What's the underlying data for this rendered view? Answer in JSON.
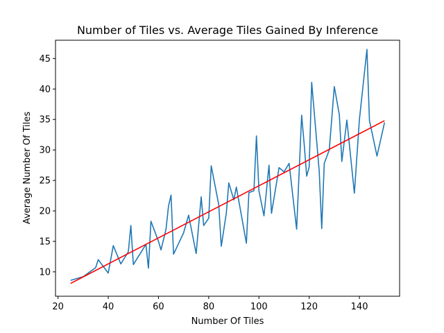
{
  "chart_data": {
    "type": "line",
    "title": "Number of Tiles vs. Average Tiles Gained By Inference",
    "xlabel": "Number Of Tiles",
    "ylabel": "Average Number Of Tiles",
    "xlim": [
      19,
      156
    ],
    "ylim": [
      6,
      48
    ],
    "xticks": [
      20,
      40,
      60,
      80,
      100,
      120,
      140
    ],
    "yticks": [
      10,
      15,
      20,
      25,
      30,
      35,
      40,
      45
    ],
    "grid": false,
    "series": [
      {
        "color": "#1f77b4",
        "x": [
          25,
          30,
          35,
          36,
          40,
          42,
          45,
          48,
          49,
          50,
          55,
          56,
          57,
          60,
          61,
          63,
          64,
          65,
          66,
          70,
          72,
          75,
          77,
          78,
          80,
          81,
          84,
          85,
          87,
          88,
          90,
          91,
          95,
          96,
          98,
          99,
          100,
          102,
          104,
          105,
          108,
          110,
          112,
          115,
          117,
          118,
          119,
          120,
          121,
          124,
          125,
          126,
          128,
          130,
          132,
          133,
          135,
          138,
          140,
          143,
          144,
          147,
          150
        ],
        "y": [
          8.6,
          9.2,
          10.7,
          12.0,
          9.8,
          14.3,
          11.3,
          13.3,
          17.6,
          11.2,
          14.5,
          10.6,
          18.3,
          15.0,
          13.6,
          17.0,
          20.8,
          22.6,
          12.9,
          16.4,
          19.3,
          13.0,
          22.3,
          17.6,
          18.8,
          27.4,
          21.0,
          14.2,
          19.6,
          24.6,
          21.8,
          23.9,
          14.7,
          23.0,
          23.3,
          32.3,
          23.3,
          19.2,
          27.5,
          19.6,
          27.1,
          26.4,
          27.8,
          17.0,
          35.7,
          31.0,
          25.7,
          27.2,
          41.1,
          26.5,
          17.1,
          27.8,
          30.0,
          40.4,
          35.8,
          28.1,
          34.9,
          22.9,
          35.0,
          46.5,
          34.8,
          29.0,
          34.5
        ]
      },
      {
        "color": "#ff0000",
        "x": [
          25,
          150
        ],
        "y": [
          8.1,
          34.8
        ]
      }
    ]
  }
}
